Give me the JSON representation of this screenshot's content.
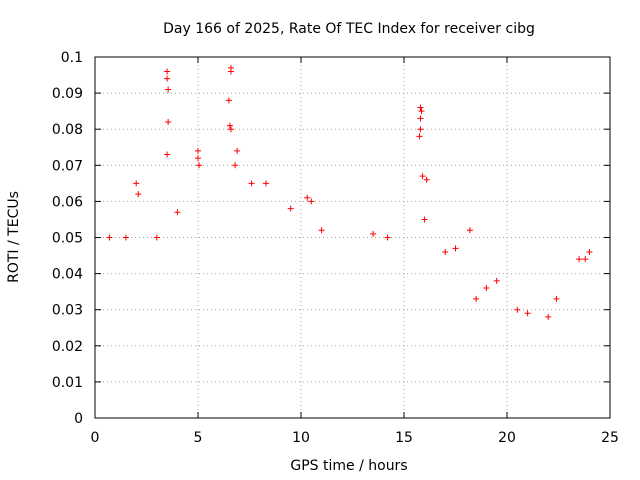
{
  "chart_data": {
    "type": "scatter",
    "title": "Day 166 of 2025, Rate Of TEC Index for receiver cibg",
    "xlabel": "GPS time / hours",
    "ylabel": "ROTI / TECUs",
    "xlim": [
      0,
      25
    ],
    "ylim": [
      0,
      0.1
    ],
    "x_ticks": [
      "0",
      "5",
      "10",
      "15",
      "20",
      "25"
    ],
    "y_ticks": [
      "0",
      "0.01",
      "0.02",
      "0.03",
      "0.04",
      "0.05",
      "0.06",
      "0.07",
      "0.08",
      "0.09",
      "0.1"
    ],
    "grid": true,
    "marker": "+",
    "series": [
      {
        "name": "ROTI",
        "color": "#ff0000",
        "points": [
          [
            3.5,
            0.096
          ],
          [
            3.5,
            0.094
          ],
          [
            3.55,
            0.091
          ],
          [
            3.55,
            0.082
          ],
          [
            3.5,
            0.073
          ],
          [
            6.6,
            0.097
          ],
          [
            6.6,
            0.096
          ],
          [
            6.5,
            0.088
          ],
          [
            6.55,
            0.081
          ],
          [
            6.6,
            0.08
          ],
          [
            6.9,
            0.074
          ],
          [
            5.0,
            0.074
          ],
          [
            5.0,
            0.072
          ],
          [
            5.05,
            0.07
          ],
          [
            6.8,
            0.07
          ],
          [
            15.8,
            0.086
          ],
          [
            15.85,
            0.085
          ],
          [
            15.8,
            0.083
          ],
          [
            15.8,
            0.08
          ],
          [
            15.75,
            0.078
          ],
          [
            15.9,
            0.067
          ],
          [
            16.1,
            0.066
          ],
          [
            2.0,
            0.065
          ],
          [
            7.6,
            0.065
          ],
          [
            8.3,
            0.065
          ],
          [
            2.1,
            0.062
          ],
          [
            10.3,
            0.061
          ],
          [
            10.5,
            0.06
          ],
          [
            4.0,
            0.057
          ],
          [
            9.5,
            0.058
          ],
          [
            16.0,
            0.055
          ],
          [
            11.0,
            0.052
          ],
          [
            0.7,
            0.05
          ],
          [
            1.5,
            0.05
          ],
          [
            3.0,
            0.05
          ],
          [
            13.5,
            0.051
          ],
          [
            14.2,
            0.05
          ],
          [
            17.0,
            0.046
          ],
          [
            17.5,
            0.047
          ],
          [
            18.2,
            0.052
          ],
          [
            24.0,
            0.046
          ],
          [
            23.8,
            0.044
          ],
          [
            23.5,
            0.044
          ],
          [
            22.4,
            0.033
          ],
          [
            19.0,
            0.036
          ],
          [
            19.5,
            0.038
          ],
          [
            20.5,
            0.03
          ],
          [
            21.0,
            0.029
          ],
          [
            22.0,
            0.028
          ],
          [
            18.5,
            0.033
          ]
        ]
      }
    ]
  }
}
